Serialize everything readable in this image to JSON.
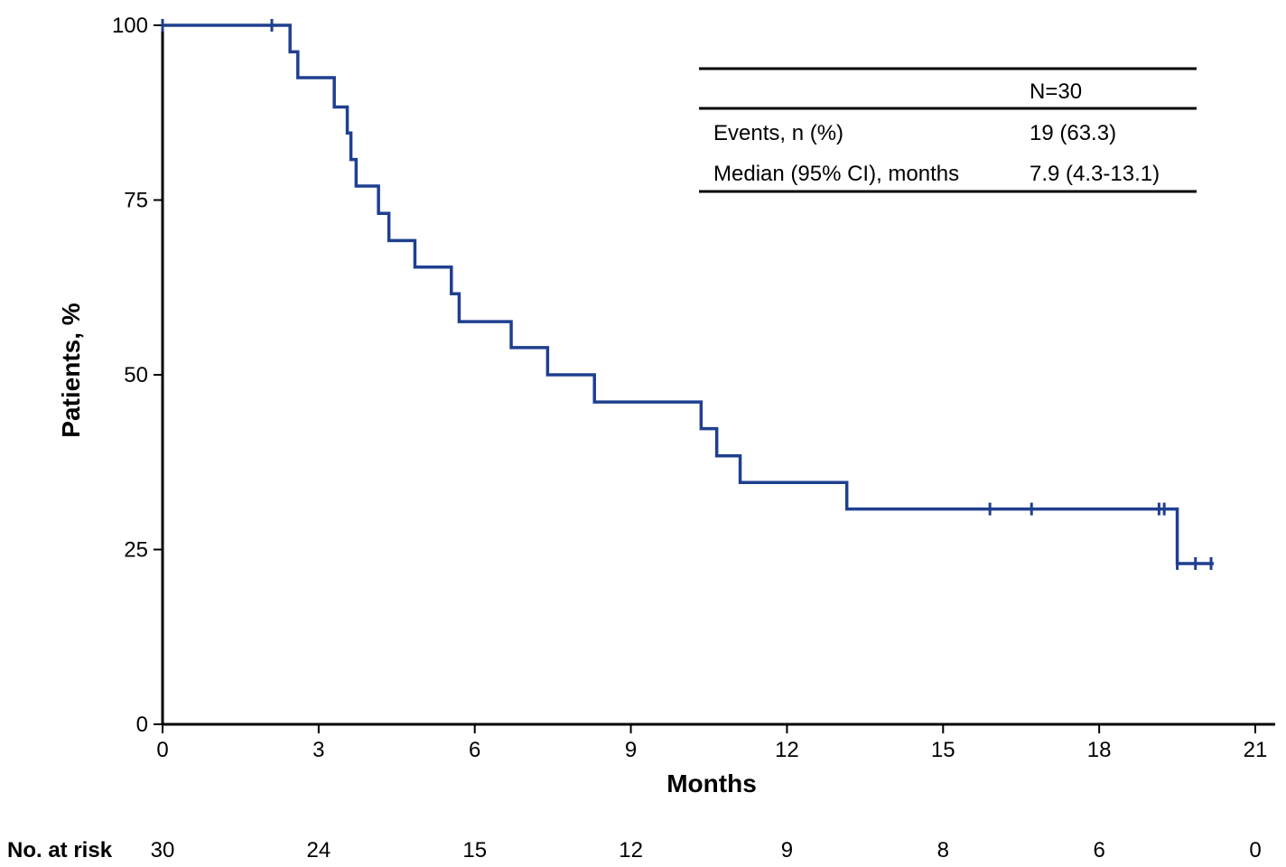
{
  "chart_data": {
    "type": "line",
    "subtype": "kaplan-meier",
    "title": "",
    "xlabel": "Months",
    "ylabel": "Patients, %",
    "xlim": [
      0,
      21
    ],
    "ylim": [
      0,
      100
    ],
    "x_ticks": [
      0,
      3,
      6,
      9,
      12,
      15,
      18,
      21
    ],
    "y_ticks": [
      0,
      25,
      50,
      75,
      100
    ],
    "grid": false,
    "line_color": "#1f3f8f",
    "series": [
      {
        "name": "Kaplan-Meier curve",
        "steps": [
          {
            "x": 0,
            "y": 100
          },
          {
            "x": 2.45,
            "y": 96.2
          },
          {
            "x": 2.6,
            "y": 92.5
          },
          {
            "x": 3.3,
            "y": 88.3
          },
          {
            "x": 3.55,
            "y": 84.6
          },
          {
            "x": 3.62,
            "y": 80.8
          },
          {
            "x": 3.72,
            "y": 77.0
          },
          {
            "x": 4.15,
            "y": 73.1
          },
          {
            "x": 4.35,
            "y": 69.2
          },
          {
            "x": 4.85,
            "y": 65.4
          },
          {
            "x": 5.55,
            "y": 61.6
          },
          {
            "x": 5.7,
            "y": 57.6
          },
          {
            "x": 6.7,
            "y": 53.9
          },
          {
            "x": 7.4,
            "y": 50.0
          },
          {
            "x": 8.3,
            "y": 46.1
          },
          {
            "x": 10.35,
            "y": 42.3
          },
          {
            "x": 10.65,
            "y": 38.4
          },
          {
            "x": 11.1,
            "y": 34.6
          },
          {
            "x": 13.15,
            "y": 30.8
          },
          {
            "x": 19.5,
            "y": 23.0
          }
        ],
        "end_x": 20.2,
        "censored": [
          {
            "x": 0,
            "y": 100
          },
          {
            "x": 2.1,
            "y": 100
          },
          {
            "x": 15.9,
            "y": 30.8
          },
          {
            "x": 16.7,
            "y": 30.8
          },
          {
            "x": 19.15,
            "y": 30.8
          },
          {
            "x": 19.25,
            "y": 30.8
          },
          {
            "x": 19.5,
            "y": 23.0
          },
          {
            "x": 19.85,
            "y": 23.0
          },
          {
            "x": 20.15,
            "y": 23.0
          }
        ]
      }
    ],
    "summary_table": {
      "header": [
        "",
        "N=30"
      ],
      "rows": [
        [
          "Events, n (%)",
          "19 (63.3)"
        ],
        [
          "Median (95% CI), months",
          "7.9 (4.3-13.1)"
        ]
      ]
    },
    "risk_table": {
      "title": "No. at risk",
      "times": [
        0,
        3,
        6,
        9,
        12,
        15,
        18,
        21
      ],
      "values": [
        "30",
        "24",
        "15",
        "12",
        "9",
        "8",
        "6",
        "0"
      ]
    }
  }
}
